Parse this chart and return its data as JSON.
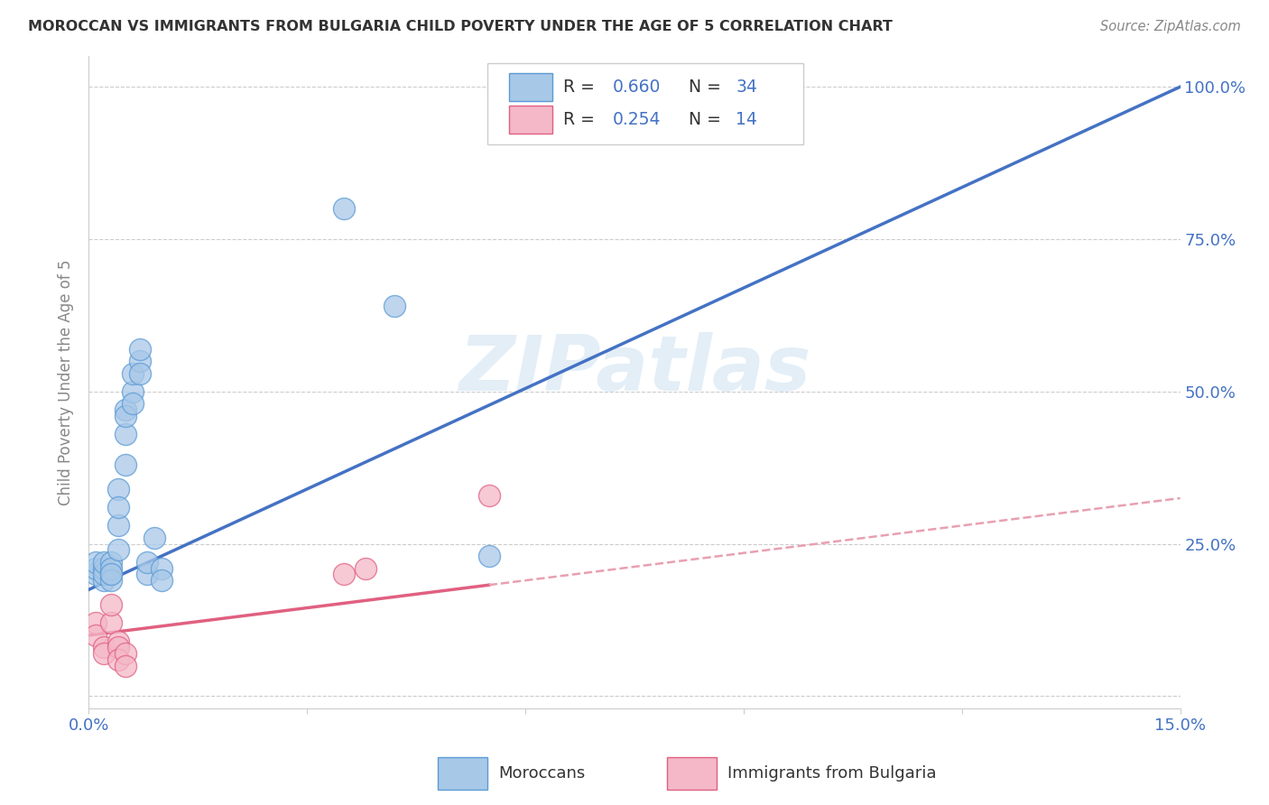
{
  "title": "MOROCCAN VS IMMIGRANTS FROM BULGARIA CHILD POVERTY UNDER THE AGE OF 5 CORRELATION CHART",
  "source": "Source: ZipAtlas.com",
  "ylabel": "Child Poverty Under the Age of 5",
  "xlim": [
    0.0,
    0.15
  ],
  "ylim": [
    -0.02,
    1.05
  ],
  "yticks": [
    0.0,
    0.25,
    0.5,
    0.75,
    1.0
  ],
  "ytick_labels_right": [
    "",
    "25.0%",
    "50.0%",
    "75.0%",
    "100.0%"
  ],
  "legend_r1": "0.660",
  "legend_n1": "34",
  "legend_r2": "0.254",
  "legend_n2": "14",
  "blue_fill": "#a8c8e8",
  "blue_edge": "#5b9bd5",
  "pink_fill": "#f4b8c8",
  "pink_edge": "#e06080",
  "blue_line": "#4472c4",
  "pink_line_solid": "#e06080",
  "pink_line_dash": "#e8a0b0",
  "watermark": "ZIPatlas",
  "blue_line_intercept": 0.175,
  "blue_line_slope": 5.5,
  "pink_line_intercept": 0.1,
  "pink_line_slope": 1.5,
  "moroccan_x": [
    0.001,
    0.001,
    0.001,
    0.002,
    0.002,
    0.002,
    0.002,
    0.003,
    0.003,
    0.003,
    0.003,
    0.003,
    0.004,
    0.004,
    0.004,
    0.004,
    0.005,
    0.005,
    0.005,
    0.005,
    0.006,
    0.006,
    0.006,
    0.007,
    0.007,
    0.007,
    0.008,
    0.008,
    0.009,
    0.01,
    0.01,
    0.035,
    0.042,
    0.055
  ],
  "moroccan_y": [
    0.2,
    0.21,
    0.22,
    0.19,
    0.21,
    0.2,
    0.22,
    0.2,
    0.22,
    0.21,
    0.19,
    0.2,
    0.34,
    0.28,
    0.31,
    0.24,
    0.38,
    0.43,
    0.47,
    0.46,
    0.5,
    0.53,
    0.48,
    0.55,
    0.57,
    0.53,
    0.2,
    0.22,
    0.26,
    0.21,
    0.19,
    0.8,
    0.64,
    0.23
  ],
  "bulgaria_x": [
    0.001,
    0.001,
    0.002,
    0.002,
    0.003,
    0.003,
    0.004,
    0.004,
    0.004,
    0.005,
    0.005,
    0.035,
    0.038,
    0.055
  ],
  "bulgaria_y": [
    0.12,
    0.1,
    0.08,
    0.07,
    0.12,
    0.15,
    0.09,
    0.08,
    0.06,
    0.07,
    0.05,
    0.2,
    0.21,
    0.33
  ]
}
